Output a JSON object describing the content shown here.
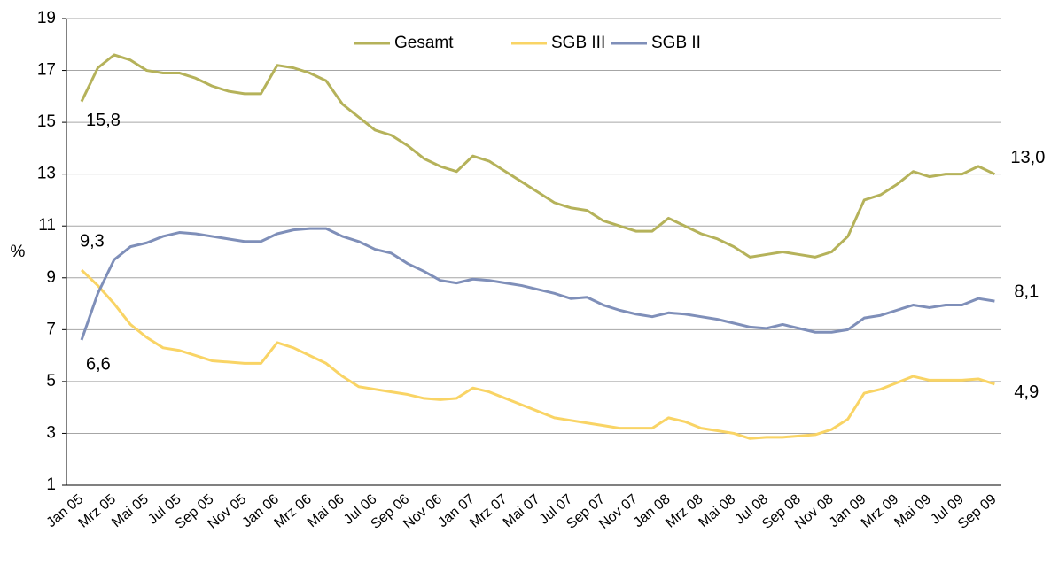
{
  "chart_data": {
    "type": "line",
    "y_label": "%",
    "categories": [
      "Jan 05",
      null,
      "Mrz 05",
      null,
      "Mai 05",
      null,
      "Jul 05",
      null,
      "Sep 05",
      null,
      "Nov 05",
      null,
      "Jan 06",
      null,
      "Mrz 06",
      null,
      "Mai 06",
      null,
      "Jul 06",
      null,
      "Sep 06",
      null,
      "Nov 06",
      null,
      "Jan 07",
      null,
      "Mrz 07",
      null,
      "Mai 07",
      null,
      "Jul 07",
      null,
      "Sep 07",
      null,
      "Nov 07",
      null,
      "Jan 08",
      null,
      "Mrz 08",
      null,
      "Mai 08",
      null,
      "Jul 08",
      null,
      "Sep 08",
      null,
      "Nov 08",
      null,
      "Jan 09",
      null,
      "Mrz 09",
      null,
      "Mai 09",
      null,
      "Jul 09",
      null,
      "Sep 09"
    ],
    "series": [
      {
        "name": "Gesamt",
        "color": "#b5b25a",
        "values": [
          15.8,
          17.1,
          17.6,
          17.4,
          17.0,
          16.9,
          16.9,
          16.7,
          16.4,
          16.2,
          16.1,
          16.1,
          17.2,
          17.1,
          16.9,
          16.6,
          15.7,
          15.2,
          14.7,
          14.5,
          14.1,
          13.6,
          13.3,
          13.1,
          13.7,
          13.5,
          13.1,
          12.7,
          12.3,
          11.9,
          11.7,
          11.6,
          11.2,
          11.0,
          10.8,
          10.8,
          11.3,
          11.0,
          10.7,
          10.5,
          10.2,
          9.8,
          9.9,
          10.0,
          9.9,
          9.8,
          10.0,
          10.6,
          12.0,
          12.2,
          12.6,
          13.1,
          12.9,
          13.0,
          13.0,
          13.3,
          13.0
        ],
        "value_labels": [
          "15,8",
          null,
          null,
          null,
          null,
          null,
          null,
          null,
          null,
          null,
          null,
          null,
          null,
          null,
          null,
          null,
          null,
          null,
          null,
          null,
          null,
          null,
          null,
          null,
          null,
          null,
          null,
          null,
          null,
          null,
          null,
          null,
          null,
          null,
          null,
          null,
          null,
          null,
          null,
          null,
          null,
          null,
          null,
          null,
          null,
          null,
          null,
          null,
          null,
          null,
          null,
          null,
          null,
          null,
          null,
          null,
          "13,0"
        ]
      },
      {
        "name": "SGB III",
        "color": "#f9d465",
        "values": [
          9.3,
          8.7,
          8.0,
          7.2,
          6.7,
          6.3,
          6.2,
          6.0,
          5.8,
          5.75,
          5.7,
          5.7,
          6.5,
          6.3,
          6.0,
          5.7,
          5.2,
          4.8,
          4.7,
          4.6,
          4.5,
          4.35,
          4.3,
          4.35,
          4.75,
          4.6,
          4.35,
          4.1,
          3.85,
          3.6,
          3.5,
          3.4,
          3.3,
          3.2,
          3.2,
          3.2,
          3.6,
          3.45,
          3.2,
          3.1,
          3.0,
          2.8,
          2.85,
          2.85,
          2.9,
          2.95,
          3.15,
          3.55,
          4.55,
          4.7,
          4.95,
          5.2,
          5.05,
          5.05,
          5.05,
          5.1,
          4.9
        ],
        "value_labels": [
          "9,3",
          null,
          null,
          null,
          null,
          null,
          null,
          null,
          null,
          null,
          null,
          null,
          null,
          null,
          null,
          null,
          null,
          null,
          null,
          null,
          null,
          null,
          null,
          null,
          null,
          null,
          null,
          null,
          null,
          null,
          null,
          null,
          null,
          null,
          null,
          null,
          null,
          null,
          null,
          null,
          null,
          null,
          null,
          null,
          null,
          null,
          null,
          null,
          null,
          null,
          null,
          null,
          null,
          null,
          null,
          null,
          "4,9"
        ]
      },
      {
        "name": "SGB II",
        "color": "#7f8fb9",
        "values": [
          6.6,
          8.4,
          9.7,
          10.2,
          10.35,
          10.6,
          10.75,
          10.7,
          10.6,
          10.5,
          10.4,
          10.4,
          10.7,
          10.85,
          10.9,
          10.9,
          10.6,
          10.4,
          10.1,
          9.95,
          9.55,
          9.25,
          8.9,
          8.8,
          8.95,
          8.9,
          8.8,
          8.7,
          8.55,
          8.4,
          8.2,
          8.25,
          7.95,
          7.75,
          7.6,
          7.5,
          7.65,
          7.6,
          7.5,
          7.4,
          7.25,
          7.1,
          7.05,
          7.2,
          7.05,
          6.9,
          6.9,
          7.0,
          7.45,
          7.55,
          7.75,
          7.95,
          7.85,
          7.95,
          7.95,
          8.2,
          8.1
        ],
        "value_labels": [
          "6,6",
          null,
          null,
          null,
          null,
          null,
          null,
          null,
          null,
          null,
          null,
          null,
          null,
          null,
          null,
          null,
          null,
          null,
          null,
          null,
          null,
          null,
          null,
          null,
          null,
          null,
          null,
          null,
          null,
          null,
          null,
          null,
          null,
          null,
          null,
          null,
          null,
          null,
          null,
          null,
          null,
          null,
          null,
          null,
          null,
          null,
          null,
          null,
          null,
          null,
          null,
          null,
          null,
          null,
          null,
          null,
          "8,1"
        ]
      }
    ],
    "ylim": [
      1,
      19
    ],
    "yticks": [
      1,
      3,
      5,
      7,
      9,
      11,
      13,
      15,
      17,
      19
    ],
    "grid": true,
    "legend": "top"
  }
}
